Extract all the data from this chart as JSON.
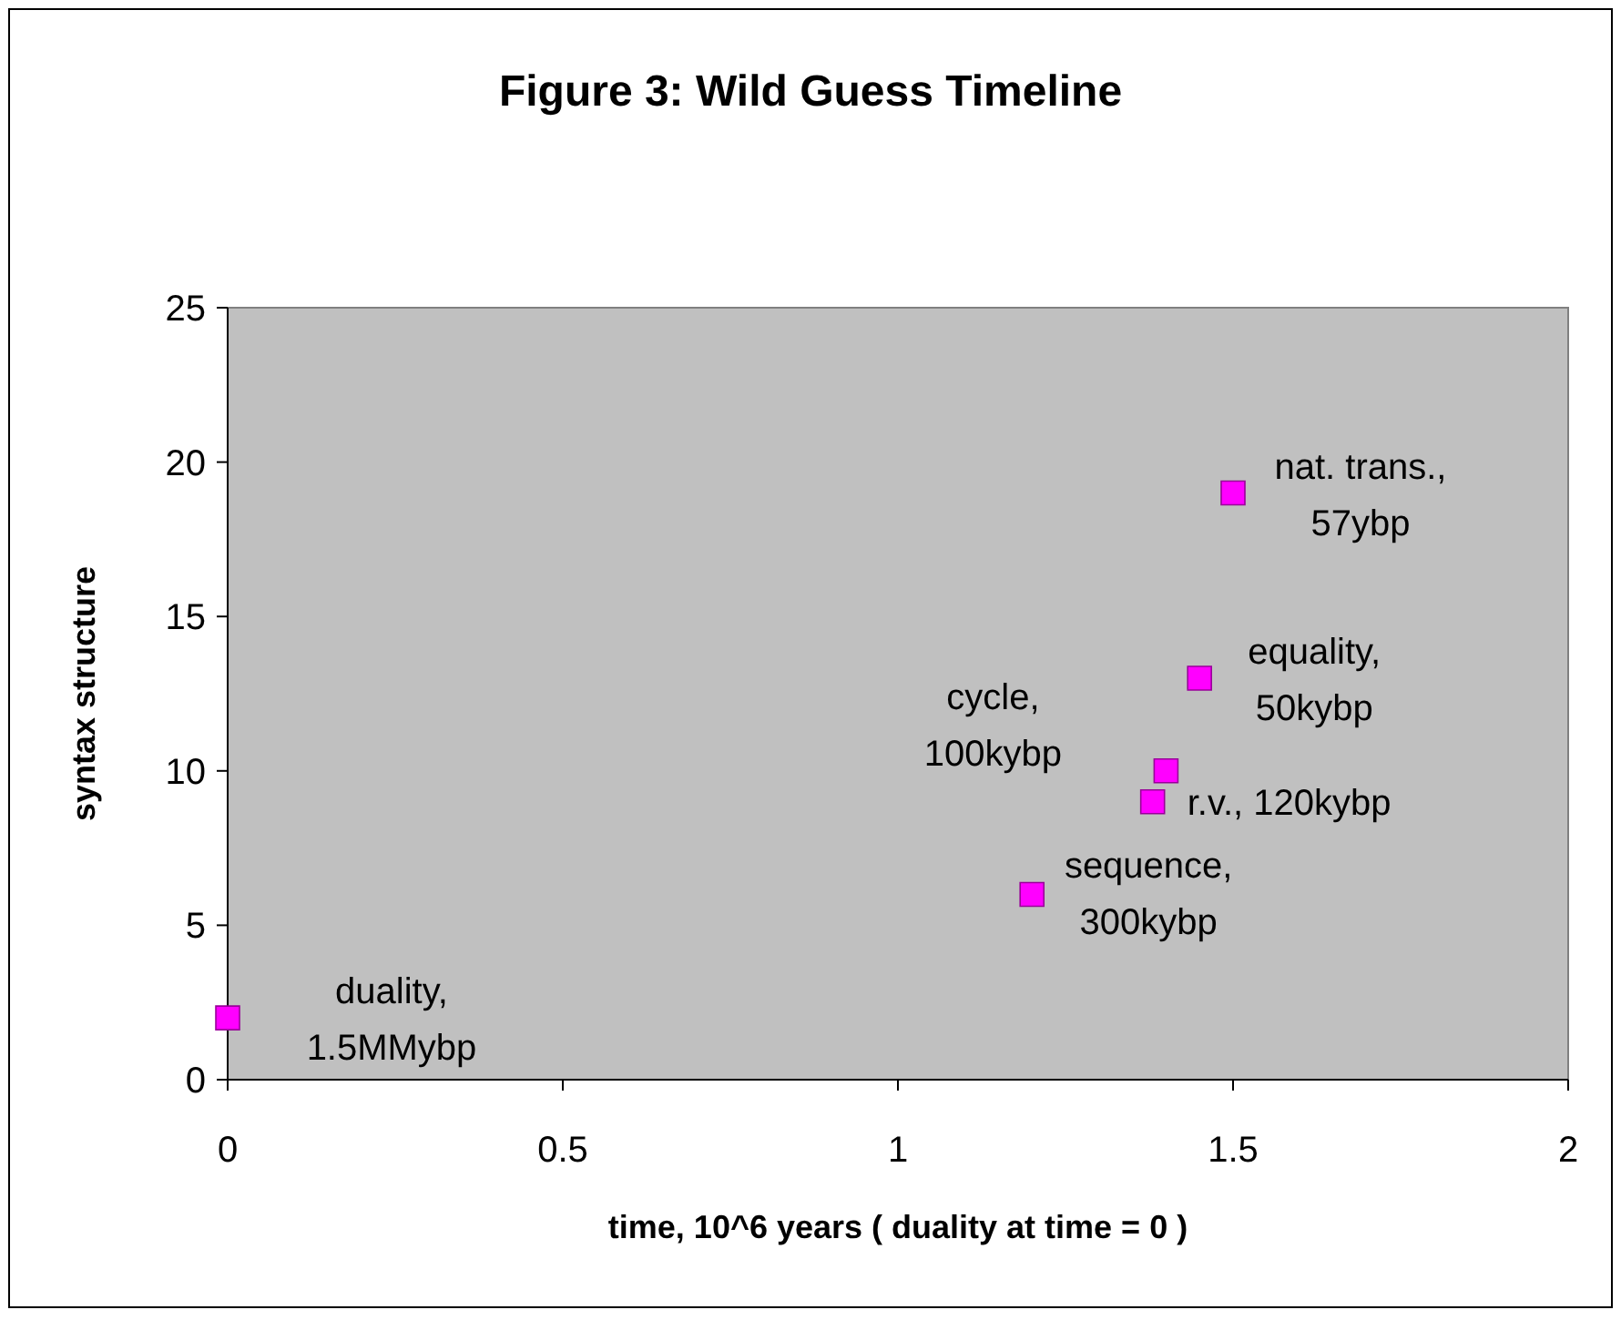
{
  "chart_data": {
    "type": "scatter",
    "title": "Figure 3: Wild Guess Timeline",
    "xlabel": "time, 10^6 years ( duality at time = 0 )",
    "ylabel": "syntax structure",
    "x": [
      0,
      1.2,
      1.38,
      1.4,
      1.45,
      1.5
    ],
    "values": [
      2,
      6,
      9,
      10,
      13,
      19
    ],
    "color": "#ff00ff",
    "marker": "square",
    "grid": false,
    "xlim": [
      0,
      2
    ],
    "xticks": [
      0,
      0.5,
      1,
      1.5,
      2
    ],
    "ylim": [
      0,
      25
    ],
    "yticks": [
      0,
      5,
      10,
      15,
      20,
      25
    ],
    "annotations": [
      {
        "text": "duality,\n1.5MMybp",
        "x": 0,
        "y": 2
      },
      {
        "text": "sequence,\n300kybp",
        "x": 1.2,
        "y": 6
      },
      {
        "text": "r.v., 120kybp",
        "x": 1.38,
        "y": 9
      },
      {
        "text": "cycle,\n100kybp",
        "x": 1.4,
        "y": 10
      },
      {
        "text": "equality,\n50kybp",
        "x": 1.45,
        "y": 13
      },
      {
        "text": "nat. trans.,\n57ybp",
        "x": 1.5,
        "y": 19
      }
    ]
  }
}
